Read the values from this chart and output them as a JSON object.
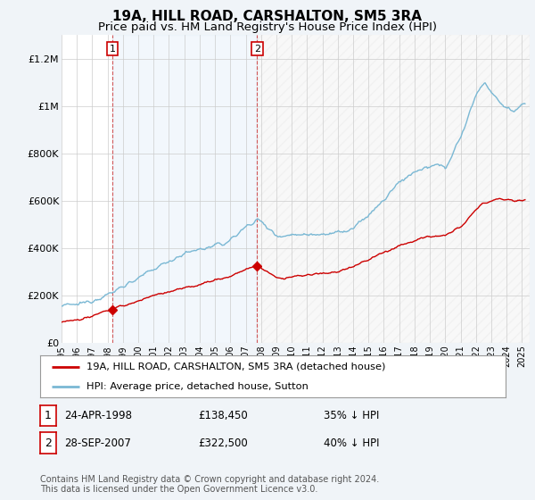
{
  "title": "19A, HILL ROAD, CARSHALTON, SM5 3RA",
  "subtitle": "Price paid vs. HM Land Registry's House Price Index (HPI)",
  "ylim": [
    0,
    1300000
  ],
  "yticks": [
    0,
    200000,
    400000,
    600000,
    800000,
    1000000,
    1200000
  ],
  "ytick_labels": [
    "£0",
    "£200K",
    "£400K",
    "£600K",
    "£800K",
    "£1M",
    "£1.2M"
  ],
  "bg_color": "#f0f4f8",
  "plot_bg_color": "#ffffff",
  "hpi_color": "#7ab8d4",
  "price_color": "#cc0000",
  "shade_color": "#ddeeff",
  "transaction1": {
    "date_num": 1998.31,
    "price": 138450,
    "label": "1"
  },
  "transaction2": {
    "date_num": 2007.74,
    "price": 322500,
    "label": "2"
  },
  "legend_entries": [
    "19A, HILL ROAD, CARSHALTON, SM5 3RA (detached house)",
    "HPI: Average price, detached house, Sutton"
  ],
  "table_rows": [
    {
      "num": "1",
      "date": "24-APR-1998",
      "price": "£138,450",
      "hpi": "35% ↓ HPI"
    },
    {
      "num": "2",
      "date": "28-SEP-2007",
      "price": "£322,500",
      "hpi": "40% ↓ HPI"
    }
  ],
  "footnote": "Contains HM Land Registry data © Crown copyright and database right 2024.\nThis data is licensed under the Open Government Licence v3.0.",
  "title_fontsize": 11,
  "subtitle_fontsize": 9.5,
  "tick_fontsize": 8,
  "xstart": 1995,
  "xend": 2025.5
}
